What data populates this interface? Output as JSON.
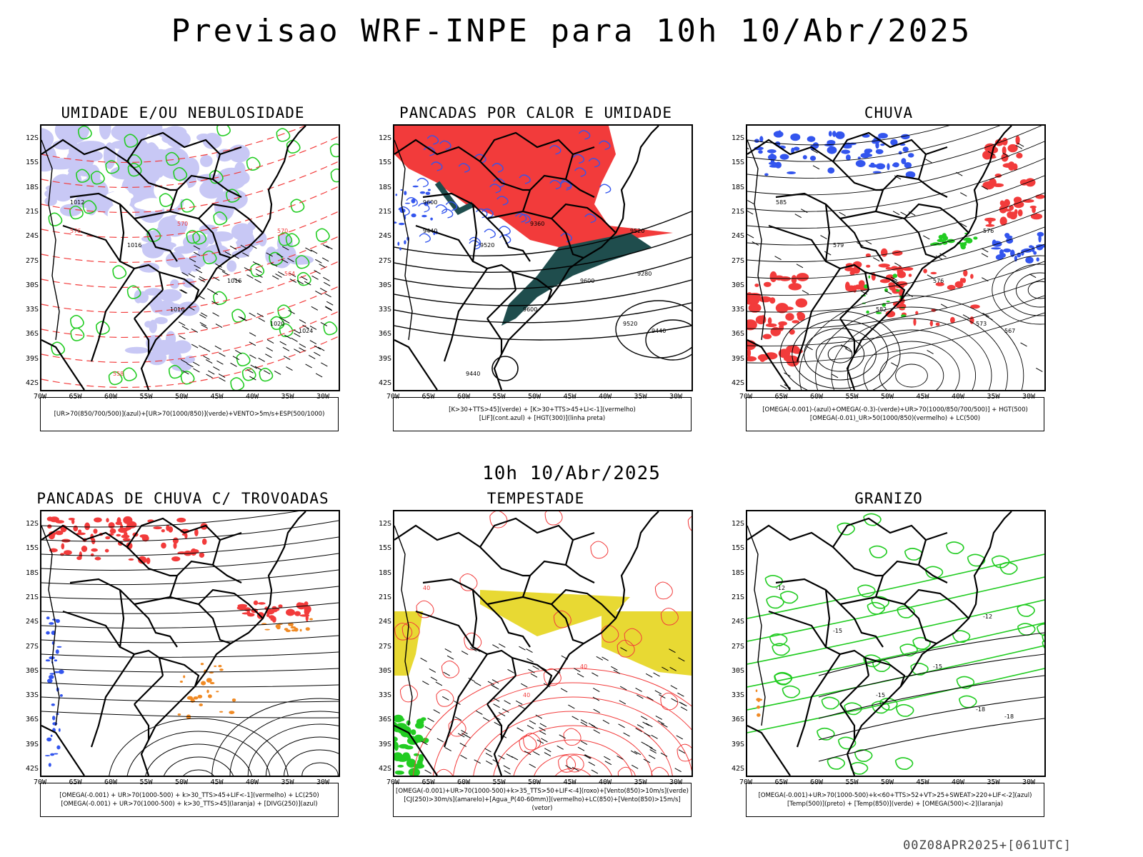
{
  "title": "Previsao WRF-INPE  para 10h 10/Abr/2025",
  "subtitle": "10h 10/Abr/2025",
  "footer": "00Z08APR2025+[061UTC]",
  "lat_labels": [
    "12S",
    "15S",
    "18S",
    "21S",
    "24S",
    "27S",
    "30S",
    "33S",
    "36S",
    "39S",
    "42S"
  ],
  "lon_labels": [
    "70W",
    "65W",
    "60W",
    "55W",
    "50W",
    "45W",
    "40W",
    "35W",
    "30W"
  ],
  "colors": {
    "blue": "#3355ee",
    "green": "#22cc22",
    "red": "#f23b3b",
    "orange": "#f08a24",
    "yellow": "#e8d933",
    "purple": "#c8c8f5",
    "darkgreen": "#1f4d4d"
  },
  "panels": [
    {
      "id": "umidade",
      "title": "UMIDADE E/OU NEBULOSIDADE",
      "legend": [
        "[UR>70(850/700/500)](azul)+[UR>70(1000/850)](verde)+VENTO>5m/s+ESP(500/1000)"
      ],
      "labels": [
        "1012",
        "1016",
        "1016",
        "1016",
        "1020",
        "1024",
        "570",
        "576",
        "570",
        "564",
        "558"
      ]
    },
    {
      "id": "pancadas",
      "title": "PANCADAS POR CALOR E UMIDADE",
      "legend": [
        "[K>30+TTS>45](verde) + [K>30+TTS>45+LI<-1](vermelho)",
        "[LIF](cont.azul) + [HGT(300)](linha preta)"
      ],
      "labels": [
        "9600",
        "9600",
        "9600",
        "9520",
        "9520",
        "9440",
        "9520",
        "9440",
        "9360",
        "9280",
        "9440"
      ]
    },
    {
      "id": "chuva",
      "title": "CHUVA",
      "legend": [
        "[OMEGA(-0.001)-(azul)+OMEGA(-0.3)-(verde)+UR>70(1000/850/700/500)] + HGT(500)",
        "[OMEGA(-0.01)_UR>50(1000/850)(vermelho) + LC(500)"
      ],
      "labels": [
        "585",
        "582",
        "576",
        "579",
        "573",
        "567",
        "576"
      ]
    },
    {
      "id": "trovoadas",
      "title": "PANCADAS DE CHUVA C/ TROVOADAS",
      "legend": [
        "[OMEGA(-0.001) + UR>70(1000-500) + k>30_TTS>45+LIF<-1](vermelho) + LC(250)",
        "[OMEGA(-0.001) + UR>70(1000-500) + k>30_TTS>45](laranja) + [DIVG(250)](azul)"
      ],
      "labels": []
    },
    {
      "id": "tempestade",
      "title": "TEMPESTADE",
      "legend": [
        "[OMEGA(-0.001)+UR>70(1000-500)+k>35_TTS>50+LIF<-4](roxo)+[Vento(850)>10m/s](verde)",
        "[CJ(250)>30m/s](amarelo)+[Agua_P(40-60mm)](vermelho)+LC(850)+[Vento(850)>15m/s](vetor)"
      ],
      "labels": [
        "40",
        "40",
        "40"
      ]
    },
    {
      "id": "granizo",
      "title": "GRANIZO",
      "legend": [
        "[OMEGA(-0.001)+UR>70(1000-500)+k<60+TTS>52+VT>25+SWEAT>220+LIF<-2](azul)",
        "[Temp(500)](preto) + [Temp(850)](verde) + [OMEGA(500)<-2](laranja)"
      ],
      "labels": [
        "-12",
        "-15",
        "-15",
        "-15",
        "-18",
        "-18",
        "-12"
      ]
    }
  ]
}
